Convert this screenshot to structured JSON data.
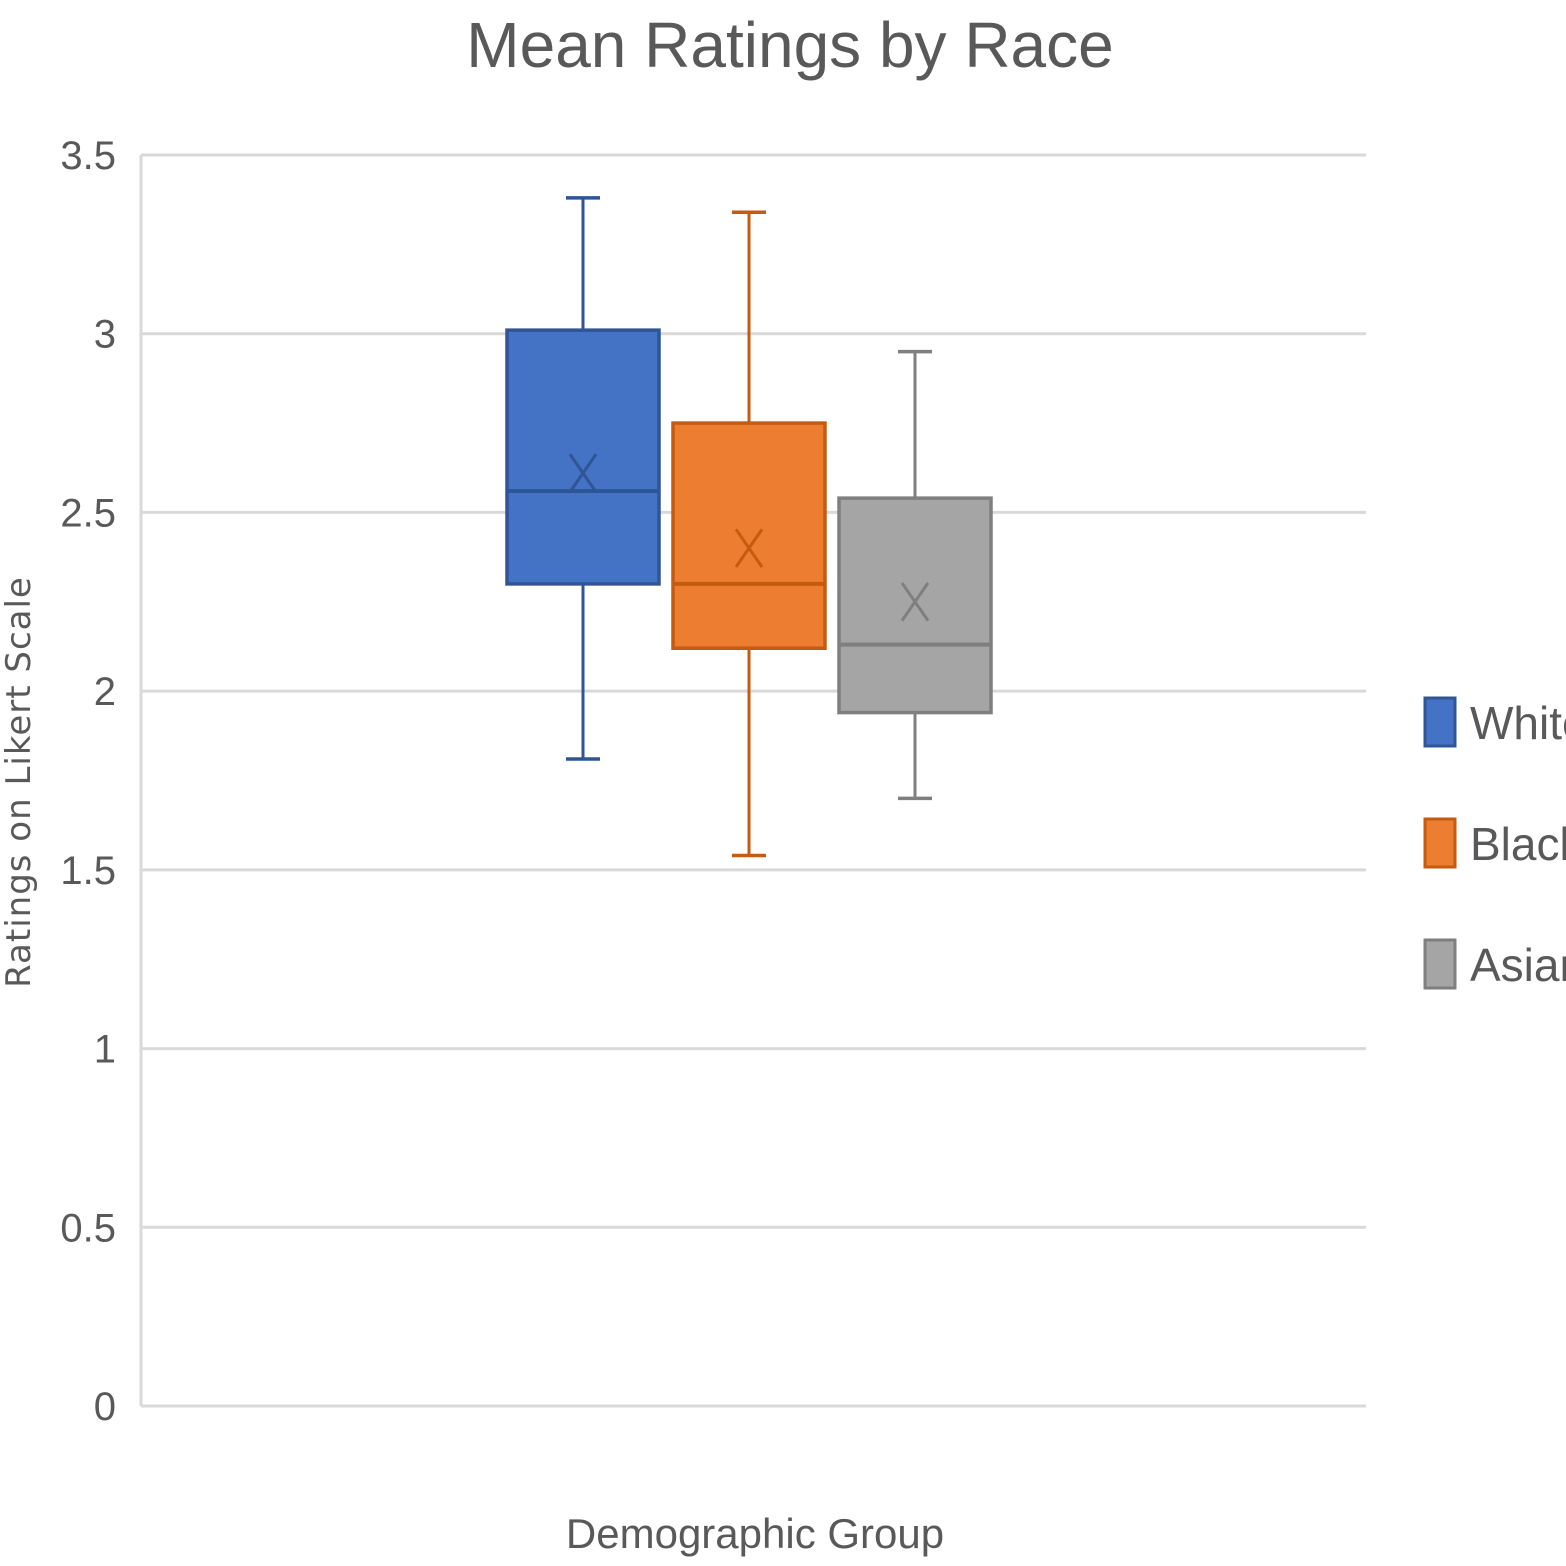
{
  "chart_data": {
    "type": "boxplot",
    "title": "Mean Ratings by Race",
    "xlabel": "Demographic Group",
    "ylabel": "Ratings on Likert Scale",
    "ylim": [
      0,
      3.5
    ],
    "yticks": [
      0,
      0.5,
      1,
      1.5,
      2,
      2.5,
      3,
      3.5
    ],
    "ytick_labels": [
      "0",
      "0.5",
      "1",
      "1.5",
      "2",
      "2.5",
      "3",
      "3.5"
    ],
    "grid": true,
    "legend_position": "right",
    "series": [
      {
        "name": "White",
        "color": "#4472C4",
        "stroke": "#2F5597",
        "min": 1.81,
        "q1": 2.3,
        "median": 2.56,
        "q3": 3.01,
        "max": 3.38,
        "mean": 2.61
      },
      {
        "name": "Black",
        "color": "#ED7D31",
        "stroke": "#C55A11",
        "min": 1.54,
        "q1": 2.12,
        "median": 2.3,
        "q3": 2.75,
        "max": 3.34,
        "mean": 2.4
      },
      {
        "name": "Asian",
        "color": "#A5A5A5",
        "stroke": "#7F7F7F",
        "min": 1.7,
        "q1": 1.94,
        "median": 2.13,
        "q3": 2.54,
        "max": 2.95,
        "mean": 2.25
      }
    ]
  }
}
